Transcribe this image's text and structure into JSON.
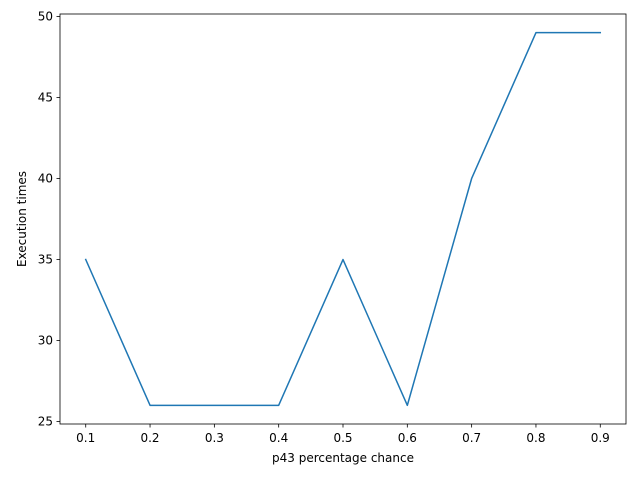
{
  "chart_data": {
    "type": "line",
    "title": "",
    "xlabel": "p43 percentage chance",
    "ylabel": "Execution times",
    "x": [
      0.1,
      0.2,
      0.3,
      0.4,
      0.5,
      0.6,
      0.7,
      0.8,
      0.9
    ],
    "series": [
      {
        "values": [
          35,
          26,
          26,
          26,
          35,
          26,
          40,
          49,
          49
        ],
        "color": "#1f77b4"
      }
    ],
    "xlim": [
      0.06,
      0.94
    ],
    "ylim": [
      24.85,
      50.15
    ],
    "xticks": [
      0.1,
      0.2,
      0.3,
      0.4,
      0.5,
      0.6,
      0.7,
      0.8,
      0.9
    ],
    "xtick_labels": [
      "0.1",
      "0.2",
      "0.3",
      "0.4",
      "0.5",
      "0.6",
      "0.7",
      "0.8",
      "0.9"
    ],
    "yticks": [
      25,
      30,
      35,
      40,
      45,
      50
    ],
    "ytick_labels": [
      "25",
      "30",
      "35",
      "40",
      "45",
      "50"
    ],
    "grid": false,
    "legend": "none"
  }
}
